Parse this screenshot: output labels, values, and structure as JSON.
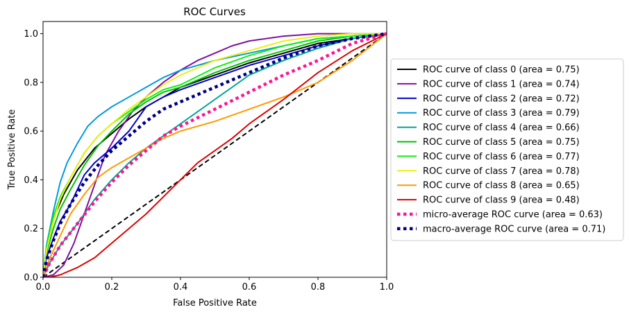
{
  "chart_data": {
    "type": "line",
    "title": "ROC Curves",
    "xlabel": "False Positive Rate",
    "ylabel": "True Positive Rate",
    "xlim": [
      0.0,
      1.0
    ],
    "ylim": [
      0.0,
      1.05
    ],
    "x_ticks": [
      "0.0",
      "0.2",
      "0.4",
      "0.6",
      "0.8",
      "1.0"
    ],
    "y_ticks": [
      "0.0",
      "0.2",
      "0.4",
      "0.6",
      "0.8",
      "1.0"
    ],
    "legend_position": "right-outside",
    "grid": false,
    "diagonal": {
      "style": "dashed",
      "color": "#000000",
      "points": [
        [
          0,
          0
        ],
        [
          1,
          1
        ]
      ]
    },
    "series": [
      {
        "name": "ROC curve of class 0 (area = 0.75)",
        "color": "#000000",
        "style": "solid",
        "points": [
          [
            0,
            0
          ],
          [
            0.01,
            0.12
          ],
          [
            0.03,
            0.24
          ],
          [
            0.06,
            0.34
          ],
          [
            0.1,
            0.44
          ],
          [
            0.15,
            0.53
          ],
          [
            0.2,
            0.59
          ],
          [
            0.25,
            0.65
          ],
          [
            0.3,
            0.7
          ],
          [
            0.35,
            0.74
          ],
          [
            0.4,
            0.78
          ],
          [
            0.5,
            0.83
          ],
          [
            0.6,
            0.88
          ],
          [
            0.7,
            0.92
          ],
          [
            0.8,
            0.96
          ],
          [
            0.9,
            0.98
          ],
          [
            1,
            1
          ]
        ]
      },
      {
        "name": "ROC curve of class 1 (area = 0.74)",
        "color": "#7f0f9f",
        "style": "solid",
        "points": [
          [
            0,
            0
          ],
          [
            0.03,
            0.01
          ],
          [
            0.06,
            0.05
          ],
          [
            0.09,
            0.14
          ],
          [
            0.12,
            0.26
          ],
          [
            0.15,
            0.38
          ],
          [
            0.18,
            0.5
          ],
          [
            0.22,
            0.6
          ],
          [
            0.26,
            0.68
          ],
          [
            0.3,
            0.74
          ],
          [
            0.35,
            0.8
          ],
          [
            0.4,
            0.85
          ],
          [
            0.45,
            0.89
          ],
          [
            0.5,
            0.92
          ],
          [
            0.55,
            0.95
          ],
          [
            0.6,
            0.97
          ],
          [
            0.7,
            0.99
          ],
          [
            0.8,
            1.0
          ],
          [
            1,
            1
          ]
        ]
      },
      {
        "name": "ROC curve of class 2 (area = 0.72)",
        "color": "#0000cc",
        "style": "solid",
        "points": [
          [
            0,
            0
          ],
          [
            0.01,
            0.08
          ],
          [
            0.03,
            0.16
          ],
          [
            0.05,
            0.23
          ],
          [
            0.08,
            0.3
          ],
          [
            0.1,
            0.36
          ],
          [
            0.12,
            0.42
          ],
          [
            0.15,
            0.47
          ],
          [
            0.2,
            0.53
          ],
          [
            0.25,
            0.6
          ],
          [
            0.3,
            0.7
          ],
          [
            0.35,
            0.74
          ],
          [
            0.4,
            0.77
          ],
          [
            0.5,
            0.82
          ],
          [
            0.6,
            0.87
          ],
          [
            0.7,
            0.91
          ],
          [
            0.8,
            0.95
          ],
          [
            0.9,
            0.98
          ],
          [
            1,
            1
          ]
        ]
      },
      {
        "name": "ROC curve of class 3 (area = 0.79)",
        "color": "#0099dd",
        "style": "solid",
        "points": [
          [
            0,
            0
          ],
          [
            0.01,
            0.13
          ],
          [
            0.03,
            0.27
          ],
          [
            0.05,
            0.39
          ],
          [
            0.07,
            0.47
          ],
          [
            0.1,
            0.55
          ],
          [
            0.13,
            0.62
          ],
          [
            0.16,
            0.66
          ],
          [
            0.2,
            0.7
          ],
          [
            0.25,
            0.74
          ],
          [
            0.3,
            0.78
          ],
          [
            0.35,
            0.82
          ],
          [
            0.4,
            0.85
          ],
          [
            0.5,
            0.89
          ],
          [
            0.6,
            0.92
          ],
          [
            0.7,
            0.95
          ],
          [
            0.8,
            0.98
          ],
          [
            0.9,
            0.99
          ],
          [
            1,
            1
          ]
        ]
      },
      {
        "name": "ROC curve of class 4 (area = 0.66)",
        "color": "#00a693",
        "style": "solid",
        "points": [
          [
            0,
            0
          ],
          [
            0.02,
            0.06
          ],
          [
            0.05,
            0.13
          ],
          [
            0.1,
            0.22
          ],
          [
            0.15,
            0.32
          ],
          [
            0.2,
            0.4
          ],
          [
            0.25,
            0.47
          ],
          [
            0.3,
            0.53
          ],
          [
            0.35,
            0.58
          ],
          [
            0.4,
            0.63
          ],
          [
            0.45,
            0.68
          ],
          [
            0.5,
            0.73
          ],
          [
            0.55,
            0.78
          ],
          [
            0.6,
            0.83
          ],
          [
            0.7,
            0.89
          ],
          [
            0.8,
            0.94
          ],
          [
            0.9,
            0.98
          ],
          [
            1,
            1
          ]
        ]
      },
      {
        "name": "ROC curve of class 5 (area = 0.75)",
        "color": "#00c000",
        "style": "solid",
        "points": [
          [
            0,
            0
          ],
          [
            0.01,
            0.1
          ],
          [
            0.03,
            0.2
          ],
          [
            0.05,
            0.28
          ],
          [
            0.08,
            0.36
          ],
          [
            0.12,
            0.46
          ],
          [
            0.16,
            0.54
          ],
          [
            0.2,
            0.6
          ],
          [
            0.25,
            0.67
          ],
          [
            0.3,
            0.72
          ],
          [
            0.35,
            0.76
          ],
          [
            0.4,
            0.78
          ],
          [
            0.5,
            0.84
          ],
          [
            0.6,
            0.89
          ],
          [
            0.7,
            0.93
          ],
          [
            0.8,
            0.97
          ],
          [
            0.9,
            0.99
          ],
          [
            1,
            1
          ]
        ]
      },
      {
        "name": "ROC curve of class 6 (area = 0.77)",
        "color": "#11ee11",
        "style": "solid",
        "points": [
          [
            0,
            0
          ],
          [
            0.01,
            0.12
          ],
          [
            0.03,
            0.25
          ],
          [
            0.05,
            0.33
          ],
          [
            0.08,
            0.41
          ],
          [
            0.12,
            0.51
          ],
          [
            0.16,
            0.58
          ],
          [
            0.2,
            0.63
          ],
          [
            0.25,
            0.68
          ],
          [
            0.3,
            0.73
          ],
          [
            0.35,
            0.77
          ],
          [
            0.4,
            0.79
          ],
          [
            0.5,
            0.86
          ],
          [
            0.6,
            0.91
          ],
          [
            0.7,
            0.95
          ],
          [
            0.8,
            0.98
          ],
          [
            0.9,
            0.99
          ],
          [
            1,
            1
          ]
        ]
      },
      {
        "name": "ROC curve of class 7 (area = 0.78)",
        "color": "#eeee11",
        "style": "solid",
        "points": [
          [
            0,
            0
          ],
          [
            0.01,
            0.11
          ],
          [
            0.03,
            0.23
          ],
          [
            0.05,
            0.32
          ],
          [
            0.08,
            0.41
          ],
          [
            0.12,
            0.51
          ],
          [
            0.16,
            0.58
          ],
          [
            0.2,
            0.63
          ],
          [
            0.25,
            0.69
          ],
          [
            0.3,
            0.74
          ],
          [
            0.35,
            0.79
          ],
          [
            0.4,
            0.83
          ],
          [
            0.5,
            0.89
          ],
          [
            0.6,
            0.93
          ],
          [
            0.7,
            0.97
          ],
          [
            0.8,
            0.99
          ],
          [
            0.9,
            1.0
          ],
          [
            1,
            1
          ]
        ]
      },
      {
        "name": "ROC curve of class 8 (area = 0.65)",
        "color": "#ff9900",
        "style": "solid",
        "points": [
          [
            0,
            0
          ],
          [
            0.02,
            0.08
          ],
          [
            0.05,
            0.17
          ],
          [
            0.08,
            0.26
          ],
          [
            0.12,
            0.34
          ],
          [
            0.16,
            0.41
          ],
          [
            0.2,
            0.45
          ],
          [
            0.25,
            0.49
          ],
          [
            0.3,
            0.53
          ],
          [
            0.35,
            0.57
          ],
          [
            0.4,
            0.6
          ],
          [
            0.5,
            0.64
          ],
          [
            0.6,
            0.69
          ],
          [
            0.7,
            0.74
          ],
          [
            0.8,
            0.8
          ],
          [
            0.9,
            0.89
          ],
          [
            1,
            1
          ]
        ]
      },
      {
        "name": "ROC curve of class 9 (area = 0.48)",
        "color": "#dd0000",
        "style": "solid",
        "points": [
          [
            0,
            0
          ],
          [
            0.02,
            0.0
          ],
          [
            0.05,
            0.01
          ],
          [
            0.1,
            0.04
          ],
          [
            0.15,
            0.08
          ],
          [
            0.2,
            0.14
          ],
          [
            0.25,
            0.2
          ],
          [
            0.3,
            0.26
          ],
          [
            0.35,
            0.33
          ],
          [
            0.4,
            0.4
          ],
          [
            0.45,
            0.47
          ],
          [
            0.5,
            0.52
          ],
          [
            0.55,
            0.57
          ],
          [
            0.6,
            0.63
          ],
          [
            0.65,
            0.68
          ],
          [
            0.7,
            0.73
          ],
          [
            0.8,
            0.84
          ],
          [
            0.9,
            0.93
          ],
          [
            1,
            1
          ]
        ]
      },
      {
        "name": "micro-average ROC curve (area = 0.63)",
        "color": "#ff1493",
        "style": "dotted",
        "points": [
          [
            0,
            0
          ],
          [
            0.02,
            0.06
          ],
          [
            0.05,
            0.13
          ],
          [
            0.1,
            0.22
          ],
          [
            0.15,
            0.31
          ],
          [
            0.2,
            0.39
          ],
          [
            0.25,
            0.46
          ],
          [
            0.3,
            0.52
          ],
          [
            0.35,
            0.58
          ],
          [
            0.4,
            0.62
          ],
          [
            0.5,
            0.69
          ],
          [
            0.6,
            0.76
          ],
          [
            0.7,
            0.83
          ],
          [
            0.8,
            0.89
          ],
          [
            0.9,
            0.96
          ],
          [
            1,
            1
          ]
        ]
      },
      {
        "name": "macro-average ROC curve (area = 0.71)",
        "color": "#000080",
        "style": "dotted",
        "points": [
          [
            0,
            0
          ],
          [
            0.01,
            0.07
          ],
          [
            0.03,
            0.15
          ],
          [
            0.05,
            0.22
          ],
          [
            0.08,
            0.3
          ],
          [
            0.12,
            0.39
          ],
          [
            0.16,
            0.46
          ],
          [
            0.2,
            0.52
          ],
          [
            0.25,
            0.58
          ],
          [
            0.3,
            0.64
          ],
          [
            0.35,
            0.69
          ],
          [
            0.4,
            0.72
          ],
          [
            0.5,
            0.78
          ],
          [
            0.6,
            0.84
          ],
          [
            0.7,
            0.9
          ],
          [
            0.8,
            0.95
          ],
          [
            0.9,
            0.98
          ],
          [
            1,
            1
          ]
        ]
      }
    ]
  }
}
